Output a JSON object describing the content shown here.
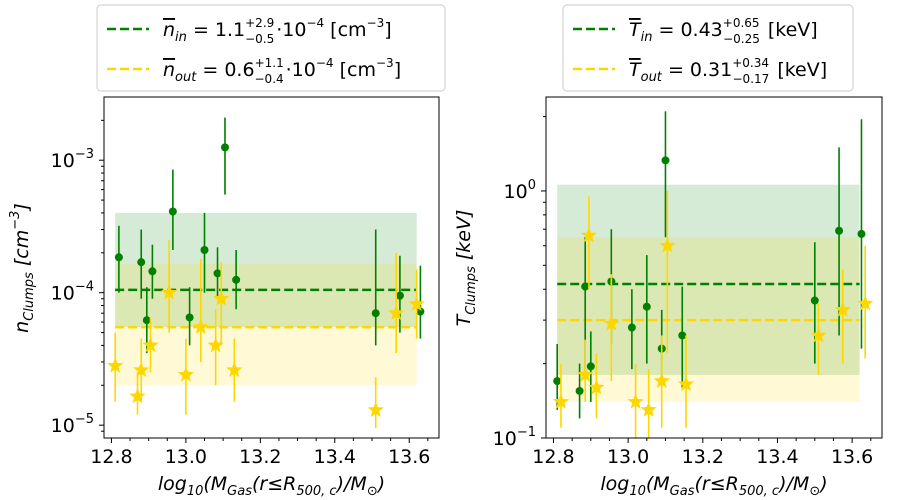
{
  "colors": {
    "in_line": "#008000",
    "in_band": "#008000",
    "out_line": "#ffd700",
    "out_band": "#ffd700"
  },
  "chart_data": [
    {
      "type": "scatter",
      "id": "left",
      "xlabel": "log10(MGas(r≤R500,c)/M⊙)",
      "ylabel": "nClumps [cm−3]",
      "xlim": [
        12.78,
        13.68
      ],
      "ylim": [
        8e-06,
        0.003
      ],
      "yscale": "log",
      "x_ticks": [
        12.8,
        13.0,
        13.2,
        13.4,
        13.6
      ],
      "x_tick_labels": [
        "12.8",
        "13.0",
        "13.2",
        "13.4",
        "13.6"
      ],
      "y_ticks": [
        1e-05,
        0.0001,
        0.001
      ],
      "y_tick_labels": [
        {
          "base": "10",
          "exp": "−5"
        },
        {
          "base": "10",
          "exp": "−4"
        },
        {
          "base": "10",
          "exp": "−3"
        }
      ],
      "legend": [
        {
          "series": "in",
          "prefix": "n",
          "sub": "in",
          "middle": " = 1.1",
          "sup_err": "+2.9",
          "sub_err": "−0.5",
          "suffix": "·10",
          "suffix_exp": "−4",
          "unit": " [cm",
          "unit_exp": "−3",
          "unit_end": "]"
        },
        {
          "series": "out",
          "prefix": "n",
          "sub": "out",
          "middle": " = 0.6",
          "sup_err": "+1.1",
          "sub_err": "−0.4",
          "suffix": "·10",
          "suffix_exp": "−4",
          "unit": " [cm",
          "unit_exp": "−3",
          "unit_end": "]"
        }
      ],
      "bands": [
        {
          "series": "in",
          "x_range": [
            12.81,
            13.62
          ],
          "y_low": 5.5e-05,
          "y_high": 0.0004,
          "line": 0.000105
        },
        {
          "series": "out",
          "x_range": [
            12.81,
            13.62
          ],
          "y_low": 2e-05,
          "y_high": 0.000165,
          "line": 5.5e-05
        }
      ],
      "series": [
        {
          "name": "in",
          "marker": "circle",
          "points": [
            {
              "x": 12.82,
              "y": 0.000185,
              "lo": 0.0001,
              "hi": 0.00032
            },
            {
              "x": 12.88,
              "y": 0.00017,
              "lo": 9e-05,
              "hi": 0.0003
            },
            {
              "x": 12.895,
              "y": 6.2e-05,
              "lo": 3.5e-05,
              "hi": 0.00011
            },
            {
              "x": 12.91,
              "y": 0.000145,
              "lo": 9e-05,
              "hi": 0.00023
            },
            {
              "x": 12.965,
              "y": 0.00041,
              "lo": 0.00021,
              "hi": 0.00085
            },
            {
              "x": 13.01,
              "y": 6.5e-05,
              "lo": 4e-05,
              "hi": 0.00011
            },
            {
              "x": 13.05,
              "y": 0.00021,
              "lo": 0.0001,
              "hi": 0.0004
            },
            {
              "x": 13.085,
              "y": 0.00014,
              "lo": 9e-05,
              "hi": 0.00022
            },
            {
              "x": 13.105,
              "y": 0.00125,
              "lo": 0.00055,
              "hi": 0.0021
            },
            {
              "x": 13.135,
              "y": 0.000125,
              "lo": 7.5e-05,
              "hi": 0.00021
            },
            {
              "x": 13.51,
              "y": 7e-05,
              "lo": 4e-05,
              "hi": 0.0003
            },
            {
              "x": 13.575,
              "y": 9.5e-05,
              "lo": 5e-05,
              "hi": 0.00019
            },
            {
              "x": 13.63,
              "y": 7.2e-05,
              "lo": 4.5e-05,
              "hi": 0.00016
            }
          ]
        },
        {
          "name": "out",
          "marker": "star",
          "points": [
            {
              "x": 12.81,
              "y": 2.8e-05,
              "lo": 1.5e-05,
              "hi": 5e-05
            },
            {
              "x": 12.87,
              "y": 1.65e-05,
              "lo": 1.2e-05,
              "hi": 2.5e-05
            },
            {
              "x": 12.88,
              "y": 2.6e-05,
              "lo": 1.5e-05,
              "hi": 4.5e-05
            },
            {
              "x": 12.905,
              "y": 4e-05,
              "lo": 2.5e-05,
              "hi": 6.5e-05
            },
            {
              "x": 12.955,
              "y": 0.0001,
              "lo": 5e-05,
              "hi": 0.00025
            },
            {
              "x": 13.0,
              "y": 2.4e-05,
              "lo": 1.2e-05,
              "hi": 4.5e-05
            },
            {
              "x": 13.04,
              "y": 5.5e-05,
              "lo": 3e-05,
              "hi": 0.00018
            },
            {
              "x": 13.08,
              "y": 4e-05,
              "lo": 2e-05,
              "hi": 7.5e-05
            },
            {
              "x": 13.095,
              "y": 9e-05,
              "lo": 4e-05,
              "hi": 0.00017
            },
            {
              "x": 13.13,
              "y": 2.6e-05,
              "lo": 1.5e-05,
              "hi": 4.5e-05
            },
            {
              "x": 13.51,
              "y": 1.3e-05,
              "lo": 9.5e-06,
              "hi": 2.3e-05
            },
            {
              "x": 13.565,
              "y": 7e-05,
              "lo": 3.5e-05,
              "hi": 0.0002
            },
            {
              "x": 13.62,
              "y": 8.2e-05,
              "lo": 4.5e-05,
              "hi": 0.00015
            }
          ]
        }
      ]
    },
    {
      "type": "scatter",
      "id": "right",
      "xlabel": "log10(MGas(r≤R500,c)/M⊙)",
      "ylabel": "TClumps [keV]",
      "xlim": [
        12.78,
        13.68
      ],
      "ylim": [
        0.1,
        2.4
      ],
      "yscale": "log",
      "x_ticks": [
        12.8,
        13.0,
        13.2,
        13.4,
        13.6
      ],
      "x_tick_labels": [
        "12.8",
        "13.0",
        "13.2",
        "13.4",
        "13.6"
      ],
      "y_ticks": [
        0.1,
        1.0
      ],
      "y_tick_labels": [
        {
          "base": "10",
          "exp": "−1"
        },
        {
          "base": "10",
          "exp": "0"
        }
      ],
      "legend": [
        {
          "series": "in",
          "prefix": "T",
          "sub": "in",
          "middle": " = 0.43",
          "sup_err": "+0.65",
          "sub_err": "−0.25",
          "suffix": "",
          "suffix_exp": "",
          "unit": " [keV]",
          "unit_exp": "",
          "unit_end": ""
        },
        {
          "series": "out",
          "prefix": "T",
          "sub": "out",
          "middle": " = 0.31",
          "sup_err": "+0.34",
          "sub_err": "−0.17",
          "suffix": "",
          "suffix_exp": "",
          "unit": " [keV]",
          "unit_exp": "",
          "unit_end": ""
        }
      ],
      "bands": [
        {
          "series": "in",
          "x_range": [
            12.81,
            13.62
          ],
          "y_low": 0.18,
          "y_high": 1.06,
          "line": 0.42
        },
        {
          "series": "out",
          "x_range": [
            12.81,
            13.62
          ],
          "y_low": 0.14,
          "y_high": 0.65,
          "line": 0.3
        }
      ],
      "series": [
        {
          "name": "in",
          "marker": "circle",
          "points": [
            {
              "x": 12.81,
              "y": 0.17,
              "lo": 0.13,
              "hi": 0.24
            },
            {
              "x": 12.87,
              "y": 0.155,
              "lo": 0.12,
              "hi": 0.2
            },
            {
              "x": 12.885,
              "y": 0.41,
              "lo": 0.18,
              "hi": 0.65
            },
            {
              "x": 12.9,
              "y": 0.195,
              "lo": 0.14,
              "hi": 0.27
            },
            {
              "x": 12.955,
              "y": 0.43,
              "lo": 0.24,
              "hi": 0.7
            },
            {
              "x": 13.01,
              "y": 0.28,
              "lo": 0.19,
              "hi": 0.4
            },
            {
              "x": 13.05,
              "y": 0.34,
              "lo": 0.2,
              "hi": 0.55
            },
            {
              "x": 13.09,
              "y": 0.23,
              "lo": 0.16,
              "hi": 0.33
            },
            {
              "x": 13.1,
              "y": 1.33,
              "lo": 0.65,
              "hi": 2.1
            },
            {
              "x": 13.145,
              "y": 0.26,
              "lo": 0.16,
              "hi": 0.41
            },
            {
              "x": 13.5,
              "y": 0.36,
              "lo": 0.2,
              "hi": 0.62
            },
            {
              "x": 13.565,
              "y": 0.69,
              "lo": 0.26,
              "hi": 1.5
            },
            {
              "x": 13.625,
              "y": 0.67,
              "lo": 0.23,
              "hi": 1.95
            }
          ]
        },
        {
          "name": "out",
          "marker": "star",
          "points": [
            {
              "x": 12.82,
              "y": 0.14,
              "lo": 0.11,
              "hi": 0.2
            },
            {
              "x": 12.885,
              "y": 0.18,
              "lo": 0.14,
              "hi": 0.25
            },
            {
              "x": 12.895,
              "y": 0.66,
              "lo": 0.4,
              "hi": 0.95
            },
            {
              "x": 12.915,
              "y": 0.16,
              "lo": 0.12,
              "hi": 0.22
            },
            {
              "x": 12.955,
              "y": 0.29,
              "lo": 0.17,
              "hi": 0.46
            },
            {
              "x": 13.02,
              "y": 0.14,
              "lo": 0.1,
              "hi": 0.2
            },
            {
              "x": 13.055,
              "y": 0.13,
              "lo": 0.1,
              "hi": 0.19
            },
            {
              "x": 13.09,
              "y": 0.17,
              "lo": 0.11,
              "hi": 0.26
            },
            {
              "x": 13.105,
              "y": 0.6,
              "lo": 0.22,
              "hi": 1.0
            },
            {
              "x": 13.155,
              "y": 0.165,
              "lo": 0.11,
              "hi": 0.26
            },
            {
              "x": 13.51,
              "y": 0.26,
              "lo": 0.18,
              "hi": 0.35
            },
            {
              "x": 13.575,
              "y": 0.33,
              "lo": 0.2,
              "hi": 0.48
            },
            {
              "x": 13.635,
              "y": 0.35,
              "lo": 0.21,
              "hi": 0.6
            }
          ]
        }
      ]
    }
  ]
}
